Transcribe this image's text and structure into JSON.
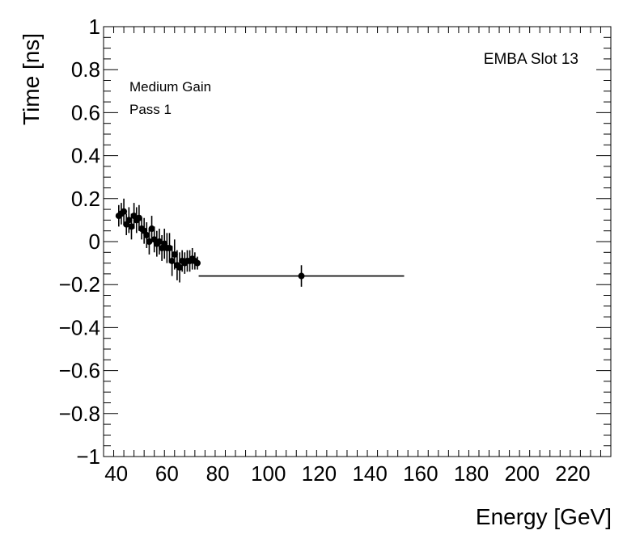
{
  "chart_data": {
    "type": "scatter",
    "xlabel": "Energy [GeV]",
    "ylabel": "Time [ns]",
    "xlim": [
      35,
      235
    ],
    "ylim": [
      -1,
      1
    ],
    "x_ticks": [
      40,
      60,
      80,
      100,
      120,
      140,
      160,
      180,
      200,
      220
    ],
    "y_ticks": [
      -1,
      -0.8,
      -0.6,
      -0.4,
      -0.2,
      0,
      0.2,
      0.4,
      0.6,
      0.8,
      1
    ],
    "x_tick_labels": [
      "40",
      "60",
      "80",
      "100",
      "120",
      "140",
      "160",
      "180",
      "200",
      "220"
    ],
    "y_tick_labels": [
      "−1",
      "−0.8",
      "−0.6",
      "−0.4",
      "−0.2",
      "0",
      "0.2",
      "0.4",
      "0.6",
      "0.8",
      "1"
    ],
    "grid": false,
    "annotations": [
      "Medium Gain",
      "Pass 1",
      "EMBA Slot 13"
    ],
    "series": [
      {
        "points": [
          {
            "x": 41.0,
            "y": 0.12,
            "yerr": 0.05,
            "xerr": 0.5
          },
          {
            "x": 42.0,
            "y": 0.13,
            "yerr": 0.05,
            "xerr": 0.5
          },
          {
            "x": 43.0,
            "y": 0.14,
            "yerr": 0.06,
            "xerr": 0.5
          },
          {
            "x": 44.0,
            "y": 0.08,
            "yerr": 0.05,
            "xerr": 0.5
          },
          {
            "x": 45.0,
            "y": 0.1,
            "yerr": 0.06,
            "xerr": 0.5
          },
          {
            "x": 46.0,
            "y": 0.07,
            "yerr": 0.06,
            "xerr": 0.5
          },
          {
            "x": 47.0,
            "y": 0.12,
            "yerr": 0.06,
            "xerr": 0.5
          },
          {
            "x": 48.0,
            "y": 0.1,
            "yerr": 0.06,
            "xerr": 0.5
          },
          {
            "x": 49.0,
            "y": 0.11,
            "yerr": 0.06,
            "xerr": 0.5
          },
          {
            "x": 50.0,
            "y": 0.06,
            "yerr": 0.05,
            "xerr": 0.5
          },
          {
            "x": 51.0,
            "y": 0.05,
            "yerr": 0.06,
            "xerr": 0.5
          },
          {
            "x": 52.0,
            "y": 0.03,
            "yerr": 0.06,
            "xerr": 0.5
          },
          {
            "x": 53.0,
            "y": 0.0,
            "yerr": 0.06,
            "xerr": 0.5
          },
          {
            "x": 54.0,
            "y": 0.06,
            "yerr": 0.06,
            "xerr": 0.5
          },
          {
            "x": 55.0,
            "y": 0.01,
            "yerr": 0.06,
            "xerr": 0.5
          },
          {
            "x": 56.0,
            "y": -0.01,
            "yerr": 0.06,
            "xerr": 0.5
          },
          {
            "x": 57.0,
            "y": 0.0,
            "yerr": 0.06,
            "xerr": 0.5
          },
          {
            "x": 58.0,
            "y": -0.03,
            "yerr": 0.06,
            "xerr": 0.5
          },
          {
            "x": 59.0,
            "y": -0.01,
            "yerr": 0.07,
            "xerr": 0.5
          },
          {
            "x": 60.0,
            "y": -0.03,
            "yerr": 0.07,
            "xerr": 0.5
          },
          {
            "x": 61.0,
            "y": -0.03,
            "yerr": 0.07,
            "xerr": 0.5
          },
          {
            "x": 62.0,
            "y": -0.09,
            "yerr": 0.07,
            "xerr": 0.5
          },
          {
            "x": 63.0,
            "y": -0.06,
            "yerr": 0.07,
            "xerr": 0.5
          },
          {
            "x": 64.0,
            "y": -0.11,
            "yerr": 0.07,
            "xerr": 0.5
          },
          {
            "x": 65.0,
            "y": -0.12,
            "yerr": 0.07,
            "xerr": 0.5
          },
          {
            "x": 66.0,
            "y": -0.09,
            "yerr": 0.05,
            "xerr": 0.5
          },
          {
            "x": 67.0,
            "y": -0.1,
            "yerr": 0.05,
            "xerr": 0.5
          },
          {
            "x": 68.0,
            "y": -0.09,
            "yerr": 0.05,
            "xerr": 0.5
          },
          {
            "x": 69.0,
            "y": -0.09,
            "yerr": 0.05,
            "xerr": 0.5
          },
          {
            "x": 70.0,
            "y": -0.08,
            "yerr": 0.05,
            "xerr": 0.5
          },
          {
            "x": 71.0,
            "y": -0.09,
            "yerr": 0.04,
            "xerr": 0.5
          },
          {
            "x": 72.0,
            "y": -0.1,
            "yerr": 0.03,
            "xerr": 0.5
          },
          {
            "x": 113.0,
            "y": -0.16,
            "yerr": 0.05,
            "xerr_low": 40.5,
            "xerr_high": 40.5
          }
        ]
      }
    ]
  }
}
